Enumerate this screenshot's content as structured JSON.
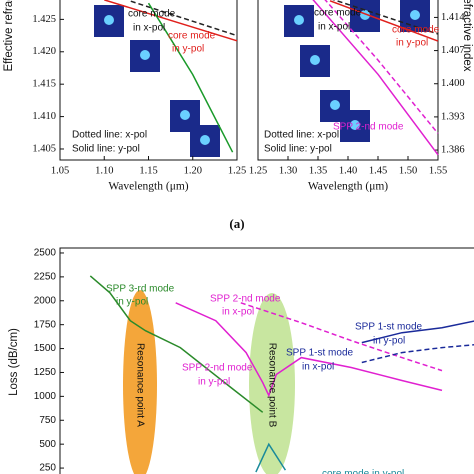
{
  "panel_label": "(a)",
  "chart_data": [
    {
      "type": "line",
      "xlabel": "Wavelength (μm)",
      "ylabel": "Effective refractive index",
      "xlim": [
        1.05,
        1.25
      ],
      "ylim": [
        1.4033,
        1.4283
      ],
      "xticks": [
        1.05,
        {
          "value": 1.1,
          "label": "1.10"
        },
        1.15,
        {
          "value": 1.2,
          "label": "1.20"
        },
        1.25
      ],
      "yticks": [
        1.405,
        {
          "value": 1.41,
          "label": "1.410"
        },
        1.415,
        {
          "value": 1.42,
          "label": "1.420"
        },
        1.425
      ],
      "series": [
        {
          "color": "#e0201c",
          "dash": false,
          "x": [
            1.1,
            1.25
          ],
          "values": [
            1.428,
            1.4217
          ]
        },
        {
          "color": "#222222",
          "dash": true,
          "x": [
            1.13,
            1.25
          ],
          "values": [
            1.4278,
            1.4225
          ]
        },
        {
          "color": "#1a9a2a",
          "dash": false,
          "x": [
            1.15,
            1.2,
            1.245
          ],
          "values": [
            1.4275,
            1.4165,
            1.4045
          ]
        }
      ],
      "annotations": [
        {
          "text": "core mode",
          "color": "#111111"
        },
        {
          "text": "in x-pol",
          "color": "#111111"
        },
        {
          "text": "core mode",
          "color": "#e0201c"
        },
        {
          "text": "in y-pol",
          "color": "#e0201c"
        },
        {
          "text": "Dotted  line: x-pol",
          "color": "#111111"
        },
        {
          "text": "Solid   line: y-pol",
          "color": "#111111"
        }
      ]
    },
    {
      "type": "line",
      "xlabel": "Wavelength (μm)",
      "ylabel": "Effective refractive index",
      "xlim": [
        1.25,
        1.55
      ],
      "ylim": [
        1.3839,
        1.4181
      ],
      "xticks": [
        1.25,
        {
          "value": 1.3,
          "label": "1.30"
        },
        1.35,
        {
          "value": 1.4,
          "label": "1.40"
        },
        1.45,
        {
          "value": 1.5,
          "label": "1.50"
        },
        1.55
      ],
      "yticks": [
        1.386,
        1.393,
        {
          "value": 1.4,
          "label": "1.400"
        },
        1.407,
        1.414
      ],
      "series": [
        {
          "color": "#e0201c",
          "dash": false,
          "x": [
            1.37,
            1.55
          ],
          "values": [
            1.4175,
            1.409
          ]
        },
        {
          "color": "#222222",
          "dash": true,
          "x": [
            1.37,
            1.55
          ],
          "values": [
            1.418,
            1.4105
          ]
        },
        {
          "color": "#e020d0",
          "dash": false,
          "x": [
            1.34,
            1.45,
            1.55
          ],
          "values": [
            1.418,
            1.402,
            1.385
          ]
        },
        {
          "color": "#e020d0",
          "dash": true,
          "x": [
            1.36,
            1.45,
            1.55
          ],
          "values": [
            1.418,
            1.405,
            1.3895
          ]
        }
      ],
      "annotations": [
        {
          "text": "core mode",
          "color": "#111111"
        },
        {
          "text": "in x-pol",
          "color": "#111111"
        },
        {
          "text": "core mode",
          "color": "#e0201c"
        },
        {
          "text": "in y-pol",
          "color": "#e0201c"
        },
        {
          "text": "Dotted  line: x-pol",
          "color": "#111111"
        },
        {
          "text": "Solid   line: y-pol",
          "color": "#111111"
        },
        {
          "text": "SPP 2-nd mode",
          "color": "#e020d0"
        }
      ]
    },
    {
      "type": "line",
      "ylabel": "Loss (dB/cm)",
      "xlim": [
        1.05,
        1.6
      ],
      "ylim": [
        167,
        2552
      ],
      "yticks": [
        250,
        500,
        750,
        1000,
        1250,
        1500,
        1750,
        2000,
        2250,
        2500
      ],
      "series": [
        {
          "color": "#2a8a2a",
          "dash": false,
          "x": [
            1.09,
            1.116,
            1.143,
            1.163,
            1.209,
            1.276,
            1.318
          ],
          "values": [
            2260,
            2083,
            1791,
            1687,
            1510,
            1093,
            833
          ]
        },
        {
          "color": "#e020d0",
          "dash": false,
          "x": [
            1.203,
            1.256,
            1.296,
            1.318,
            1.326,
            1.336,
            1.369,
            1.435,
            1.502,
            1.555
          ],
          "values": [
            1979,
            1791,
            1458,
            1145,
            1010,
            1229,
            1406,
            1302,
            1166,
            1062
          ]
        },
        {
          "color": "#e020d0",
          "dash": true,
          "x": [
            1.289,
            1.369,
            1.435,
            1.502,
            1.555
          ],
          "values": [
            1979,
            1771,
            1583,
            1406,
            1270
          ]
        },
        {
          "color": "#1a2a9a",
          "dash": false,
          "x": [
            1.449,
            1.502,
            1.555,
            1.6
          ],
          "values": [
            1562,
            1666,
            1718,
            1791
          ]
        },
        {
          "color": "#1a2a9a",
          "dash": true,
          "x": [
            1.449,
            1.502,
            1.555,
            1.6
          ],
          "values": [
            1354,
            1458,
            1510,
            1541
          ]
        },
        {
          "color": "#1a8a9a",
          "dash": false,
          "x": [
            1.309,
            1.326,
            1.348
          ],
          "values": [
            208,
            500,
            229
          ]
        }
      ],
      "annotations": [
        {
          "text": "SPP 3-rd mode",
          "color": "#2a8a2a"
        },
        {
          "text": "in y-pol",
          "color": "#2a8a2a"
        },
        {
          "text": "SPP 2-nd mode",
          "color": "#e020d0"
        },
        {
          "text": "in x-pol",
          "color": "#e020d0"
        },
        {
          "text": "SPP 2-nd mode",
          "color": "#e020d0"
        },
        {
          "text": "in y-pol",
          "color": "#e020d0"
        },
        {
          "text": "SPP 1-st mode",
          "color": "#1a2a9a"
        },
        {
          "text": "in y-pol",
          "color": "#1a2a9a"
        },
        {
          "text": "SPP 1-st mode",
          "color": "#1a2a9a"
        },
        {
          "text": "in x-pol",
          "color": "#1a2a9a"
        },
        {
          "text": "Resonance point A",
          "color": "#111111"
        },
        {
          "text": "Resonance point B",
          "color": "#111111"
        },
        {
          "text": "core mode in y-pol",
          "color": "#1a8a9a"
        }
      ]
    }
  ]
}
